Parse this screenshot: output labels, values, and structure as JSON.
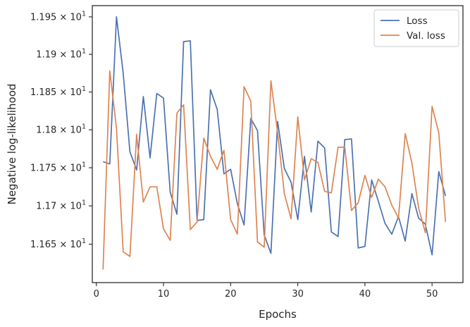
{
  "chart_data": {
    "type": "line",
    "title": "",
    "xlabel": "Epochs",
    "ylabel": "Negative log-likelihood",
    "xlim": [
      -0.6,
      54.6
    ],
    "ylim": [
      11.6,
      11.965
    ],
    "yscale": "log",
    "x_ticks": [
      0,
      10,
      20,
      30,
      40,
      50
    ],
    "x_tick_labels": [
      "0",
      "10",
      "20",
      "30",
      "40",
      "50"
    ],
    "y_ticks": [
      11.65,
      11.7,
      11.75,
      11.8,
      11.85,
      11.9,
      11.95
    ],
    "y_tick_mantissas": [
      "1.165",
      "1.17",
      "1.175",
      "1.18",
      "1.185",
      "1.19",
      "1.195"
    ],
    "y_tick_mult": "×",
    "y_tick_base": "10",
    "y_tick_exp": "1",
    "grid": false,
    "legend_position": "top-right",
    "x": [
      1,
      2,
      3,
      4,
      5,
      6,
      7,
      8,
      9,
      10,
      11,
      12,
      13,
      14,
      15,
      16,
      17,
      18,
      19,
      20,
      21,
      22,
      23,
      24,
      25,
      26,
      27,
      28,
      29,
      30,
      31,
      32,
      33,
      34,
      35,
      36,
      37,
      38,
      39,
      40,
      41,
      42,
      43,
      44,
      45,
      46,
      47,
      48,
      49,
      50,
      51,
      52
    ],
    "series": [
      {
        "name": "Loss",
        "color": "#4c72b0",
        "values": [
          11.758,
          11.755,
          11.95,
          11.875,
          11.771,
          11.747,
          11.844,
          11.763,
          11.848,
          11.842,
          11.718,
          11.689,
          11.917,
          11.918,
          11.681,
          11.682,
          11.853,
          11.827,
          11.742,
          11.748,
          11.703,
          11.675,
          11.815,
          11.799,
          11.662,
          11.638,
          11.811,
          11.749,
          11.731,
          11.682,
          11.765,
          11.692,
          11.785,
          11.776,
          11.666,
          11.66,
          11.787,
          11.788,
          11.645,
          11.647,
          11.734,
          11.706,
          11.677,
          11.663,
          11.686,
          11.654,
          11.716,
          11.684,
          11.676,
          11.636,
          11.745,
          11.713
        ]
      },
      {
        "name": "Val. loss",
        "color": "#dd8452",
        "values": [
          11.617,
          11.878,
          11.802,
          11.64,
          11.634,
          11.794,
          11.705,
          11.725,
          11.725,
          11.67,
          11.655,
          11.822,
          11.833,
          11.669,
          11.679,
          11.789,
          11.765,
          11.748,
          11.773,
          11.682,
          11.663,
          11.857,
          11.838,
          11.653,
          11.646,
          11.865,
          11.796,
          11.716,
          11.683,
          11.817,
          11.734,
          11.762,
          11.757,
          11.719,
          11.717,
          11.777,
          11.777,
          11.694,
          11.704,
          11.74,
          11.711,
          11.735,
          11.725,
          11.701,
          11.684,
          11.795,
          11.756,
          11.697,
          11.665,
          11.831,
          11.796,
          11.679
        ]
      }
    ]
  }
}
